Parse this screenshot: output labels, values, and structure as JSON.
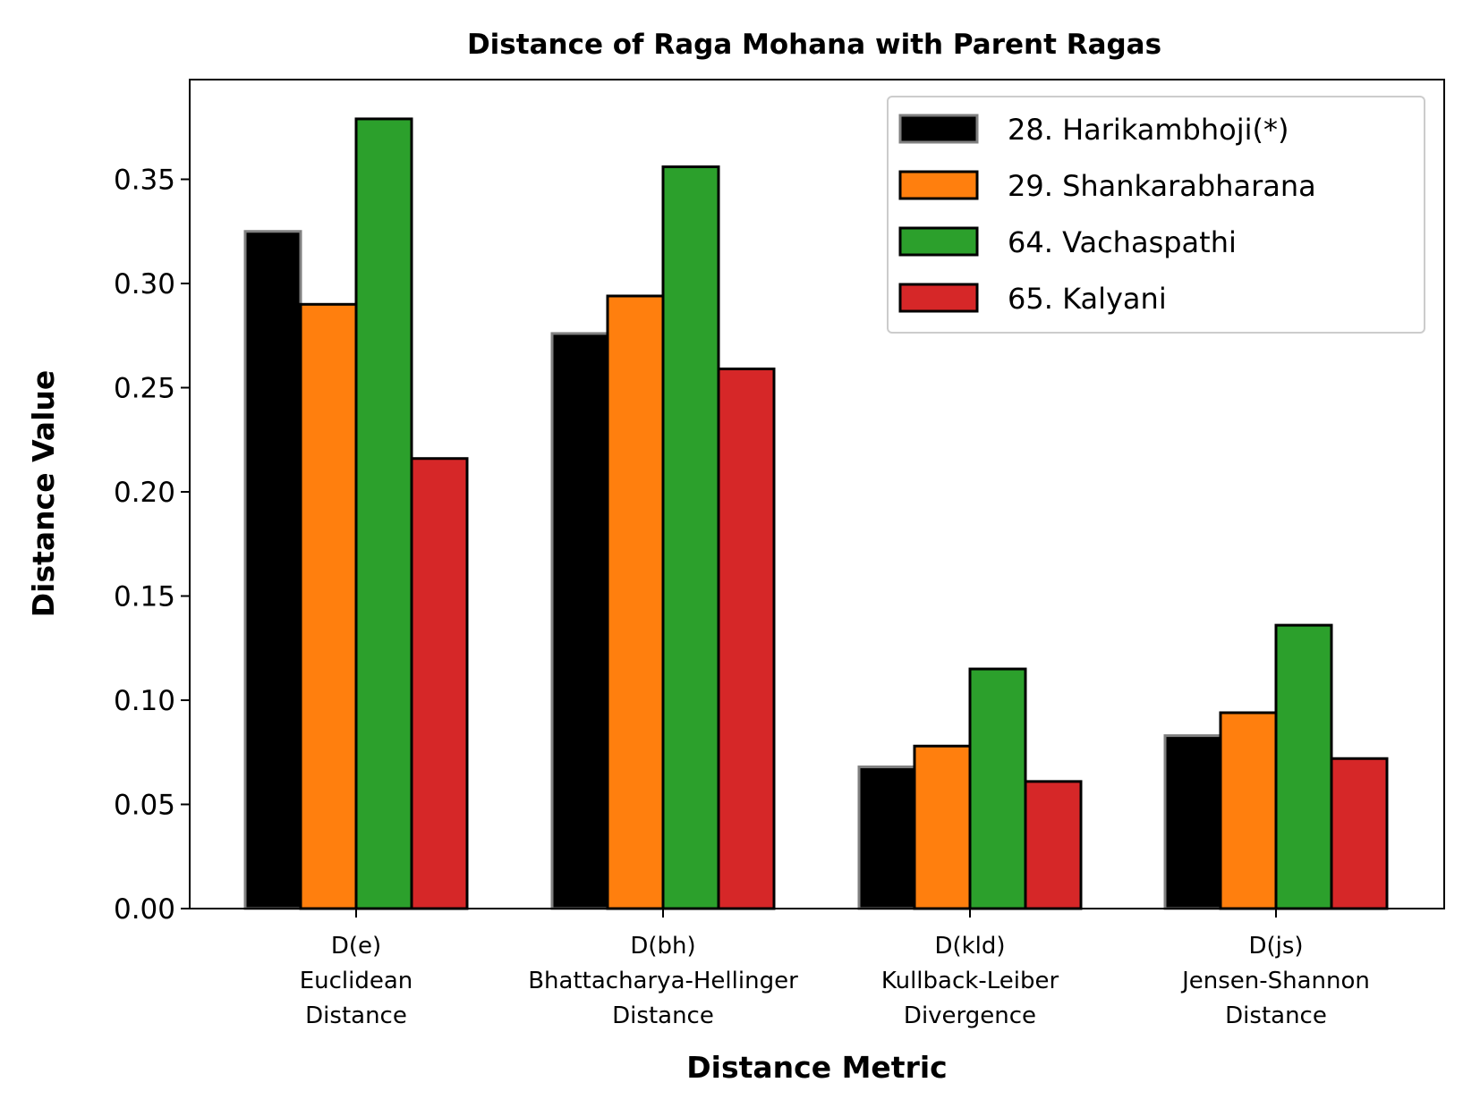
{
  "chart_data": {
    "type": "bar",
    "title": "Distance of Raga Mohana with Parent Ragas",
    "xlabel": "Distance Metric",
    "ylabel": "Distance Value",
    "ylim": [
      0,
      0.4
    ],
    "yticks": [
      "0.00",
      "0.05",
      "0.10",
      "0.15",
      "0.20",
      "0.25",
      "0.30",
      "0.35"
    ],
    "grid": false,
    "legend_position": "top-right",
    "categories": [
      [
        "D(e)",
        "Euclidean",
        "Distance"
      ],
      [
        "D(bh)",
        "Bhattacharya-Hellinger",
        "Distance"
      ],
      [
        "D(kld)",
        "Kullback-Leiber",
        "Divergence"
      ],
      [
        "D(js)",
        "Jensen-Shannon",
        "Distance"
      ]
    ],
    "series": [
      {
        "name": "28. Harikambhoji(*)",
        "color": "#000000",
        "edge": "#808080",
        "values": [
          0.325,
          0.276,
          0.068,
          0.083
        ]
      },
      {
        "name": "29. Shankarabharana",
        "color": "#ff7f0e",
        "edge": "#000000",
        "values": [
          0.29,
          0.294,
          0.078,
          0.094
        ]
      },
      {
        "name": "64. Vachaspathi",
        "color": "#2ca02c",
        "edge": "#000000",
        "values": [
          0.379,
          0.356,
          0.115,
          0.136
        ]
      },
      {
        "name": "65. Kalyani",
        "color": "#d62728",
        "edge": "#000000",
        "values": [
          0.216,
          0.259,
          0.061,
          0.072
        ]
      }
    ]
  }
}
